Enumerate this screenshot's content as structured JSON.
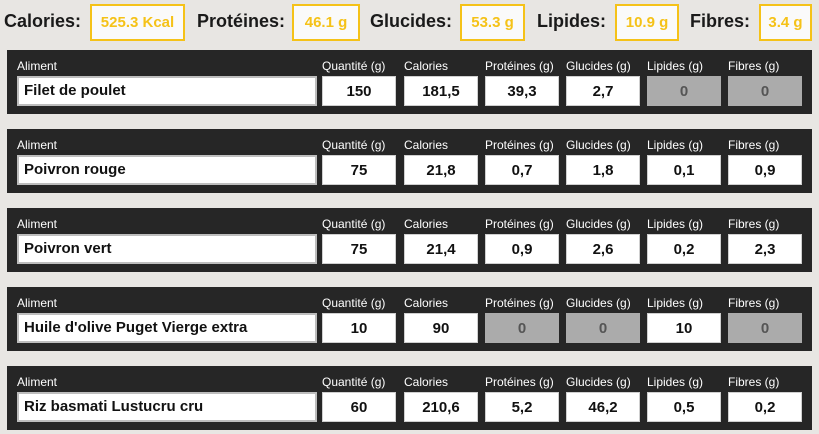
{
  "summary": {
    "calories": {
      "label": "Calories:",
      "value": "525.3 Kcal"
    },
    "proteines": {
      "label": "Protéines:",
      "value": "46.1 g"
    },
    "glucides": {
      "label": "Glucides:",
      "value": "53.3 g"
    },
    "lipides": {
      "label": "Lipides:",
      "value": "10.9 g"
    },
    "fibres": {
      "label": "Fibres:",
      "value": "3.4 g"
    }
  },
  "headers": {
    "aliment": "Aliment",
    "quantite": "Quantité (g)",
    "calories": "Calories",
    "proteines": "Protéines (g)",
    "glucides": "Glucides (g)",
    "lipides": "Lipides (g)",
    "fibres": "Fibres (g)"
  },
  "foods": [
    {
      "name": "Filet de poulet",
      "quantite": "150",
      "calories": "181,5",
      "proteines": "39,3",
      "glucides": "2,7",
      "lipides": "0",
      "fibres": "0"
    },
    {
      "name": "Poivron rouge",
      "quantite": "75",
      "calories": "21,8",
      "proteines": "0,7",
      "glucides": "1,8",
      "lipides": "0,1",
      "fibres": "0,9"
    },
    {
      "name": "Poivron vert",
      "quantite": "75",
      "calories": "21,4",
      "proteines": "0,9",
      "glucides": "2,6",
      "lipides": "0,2",
      "fibres": "2,3"
    },
    {
      "name": "Huile d'olive Puget Vierge extra",
      "quantite": "10",
      "calories": "90",
      "proteines": "0",
      "glucides": "0",
      "lipides": "10",
      "fibres": "0"
    },
    {
      "name": "Riz basmati Lustucru cru",
      "quantite": "60",
      "calories": "210,6",
      "proteines": "5,2",
      "glucides": "46,2",
      "lipides": "0,5",
      "fibres": "0,2"
    }
  ],
  "colors": {
    "accent": "#f5c218",
    "row_bg": "#262626",
    "page_bg": "#e8e6e3",
    "disabled": "#ababab"
  }
}
